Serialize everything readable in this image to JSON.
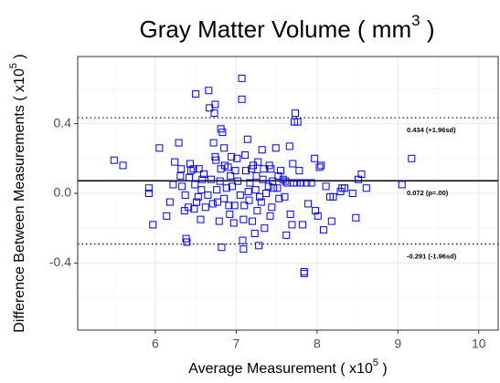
{
  "chart_data": {
    "type": "scatter",
    "title": [
      "Gray Matter Volume ( mm",
      "3",
      " )"
    ],
    "x_label": [
      "Average Measurement ( x10",
      "5",
      " )"
    ],
    "y_label": [
      "Difference Between Measurements ( x10",
      "5",
      " )"
    ],
    "xlim": [
      5.04,
      10.24
    ],
    "ylim": [
      -0.785,
      0.785
    ],
    "xticks": [
      6,
      7,
      8,
      9,
      10
    ],
    "yticks": [
      -0.4,
      {
        "value": 0,
        "label": "0.0"
      },
      0.4
    ],
    "xminor": [
      5.5,
      6.5,
      7.5,
      8.5,
      9.5
    ],
    "yminor": [
      -0.6,
      -0.2,
      0.2,
      0.6
    ],
    "grid": true,
    "color": "#0000ee",
    "hlines": [
      {
        "value": 0.434,
        "label": "0.434 (+1.96sd)",
        "style": "dotted"
      },
      {
        "value": 0.072,
        "label": "0.072 (p=.00)",
        "style": "solid"
      },
      {
        "value": -0.291,
        "label": "-0.291 (-1.96sd)",
        "style": "dotted"
      }
    ],
    "x": [
      5.49,
      5.6,
      5.92,
      5.92,
      5.97,
      6.05,
      6.14,
      6.18,
      6.22,
      6.24,
      6.29,
      6.31,
      6.32,
      6.33,
      6.36,
      6.37,
      6.38,
      6.39,
      6.41,
      6.42,
      6.43,
      6.44,
      6.47,
      6.48,
      6.49,
      6.5,
      6.51,
      6.53,
      6.54,
      6.56,
      6.57,
      6.58,
      6.6,
      6.62,
      6.65,
      6.66,
      6.67,
      6.69,
      6.71,
      6.72,
      6.73,
      6.74,
      6.75,
      6.76,
      6.77,
      6.79,
      6.8,
      6.81,
      6.82,
      6.83,
      6.85,
      6.85,
      6.86,
      6.88,
      6.9,
      6.91,
      6.92,
      6.93,
      6.94,
      6.95,
      6.97,
      6.98,
      6.99,
      7.01,
      7.02,
      7.05,
      7.07,
      7.07,
      7.08,
      7.09,
      7.09,
      7.1,
      7.11,
      7.12,
      7.14,
      7.15,
      7.16,
      7.17,
      7.19,
      7.2,
      7.21,
      7.23,
      7.24,
      7.25,
      7.26,
      7.27,
      7.28,
      7.29,
      7.31,
      7.32,
      7.33,
      7.34,
      7.35,
      7.37,
      7.4,
      7.41,
      7.42,
      7.43,
      7.44,
      7.45,
      7.46,
      7.49,
      7.51,
      7.52,
      7.53,
      7.55,
      7.58,
      7.6,
      7.61,
      7.62,
      7.63,
      7.66,
      7.67,
      7.69,
      7.7,
      7.71,
      7.73,
      7.75,
      7.78,
      7.8,
      7.82,
      7.84,
      7.84,
      7.87,
      7.89,
      7.93,
      7.97,
      7.98,
      8.01,
      8.03,
      8.05,
      8.08,
      8.11,
      8.16,
      8.18,
      8.2,
      8.29,
      8.31,
      8.34,
      8.44,
      8.48,
      8.51,
      8.55,
      8.61,
      9.05,
      9.17,
      7.72,
      7.76,
      6.81,
      6.74
    ],
    "values": [
      0.19,
      0.16,
      0.03,
      0.0,
      -0.18,
      0.26,
      -0.13,
      -0.05,
      0.05,
      0.18,
      0.29,
      0.1,
      0.14,
      0.04,
      -0.1,
      -0.01,
      -0.26,
      -0.28,
      -0.08,
      0.09,
      0.17,
      0.13,
      0.14,
      -0.09,
      0.05,
      0.57,
      -0.05,
      -0.02,
      0.14,
      -0.15,
      0.02,
      0.08,
      0.11,
      -0.08,
      -0.01,
      0.59,
      0.49,
      0.08,
      -0.06,
      0.29,
      0.46,
      0.21,
      0.19,
      0.02,
      -0.05,
      -0.16,
      0.07,
      0.14,
      -0.31,
      0.35,
      0.26,
      -0.03,
      0.16,
      0.03,
      0.15,
      -0.07,
      -0.12,
      0.1,
      0.21,
      0.04,
      -0.17,
      -0.07,
      0.13,
      0.2,
      0.07,
      -0.01,
      0.66,
      0.54,
      -0.27,
      -0.32,
      -0.15,
      -0.07,
      0.22,
      0.13,
      0.31,
      0.01,
      -0.04,
      0.06,
      0.14,
      -0.16,
      0.16,
      -0.23,
      0.02,
      0.1,
      -0.1,
      0.18,
      -0.3,
      -0.02,
      -0.05,
      0.25,
      0.08,
      0.14,
      -0.2,
      0.0,
      0.04,
      0.16,
      -0.13,
      0.14,
      -0.08,
      0.07,
      0.03,
      0.26,
      0.03,
      0.1,
      -0.03,
      0.13,
      0.08,
      -0.02,
      0.07,
      -0.24,
      0.06,
      0.27,
      -0.12,
      -0.18,
      0.17,
      0.06,
      0.46,
      0.06,
      0.13,
      0.06,
      -0.18,
      -0.45,
      -0.46,
      0.06,
      -0.06,
      0.06,
      0.2,
      -0.1,
      -0.13,
      0.15,
      0.16,
      -0.21,
      0.04,
      -0.02,
      -0.16,
      -0.02,
      0.01,
      0.03,
      0.03,
      0.0,
      -0.14,
      0.08,
      0.11,
      0.03,
      0.05,
      0.2,
      0.41,
      0.41,
      0.37,
      0.51
    ]
  }
}
